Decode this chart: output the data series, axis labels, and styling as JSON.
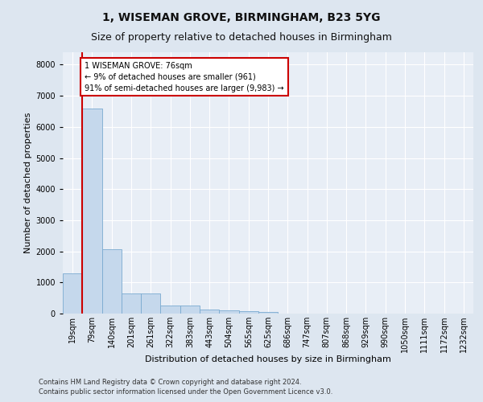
{
  "title1": "1, WISEMAN GROVE, BIRMINGHAM, B23 5YG",
  "title2": "Size of property relative to detached houses in Birmingham",
  "xlabel": "Distribution of detached houses by size in Birmingham",
  "ylabel": "Number of detached properties",
  "bar_values": [
    1300,
    6600,
    2080,
    650,
    650,
    250,
    250,
    130,
    110,
    90,
    60,
    0,
    0,
    0,
    0,
    0,
    0,
    0,
    0,
    0,
    0
  ],
  "bar_color": "#c5d8ec",
  "bar_edge_color": "#7aaad0",
  "x_labels": [
    "19sqm",
    "79sqm",
    "140sqm",
    "201sqm",
    "261sqm",
    "322sqm",
    "383sqm",
    "443sqm",
    "504sqm",
    "565sqm",
    "625sqm",
    "686sqm",
    "747sqm",
    "807sqm",
    "868sqm",
    "929sqm",
    "990sqm",
    "1050sqm",
    "1111sqm",
    "1172sqm",
    "1232sqm"
  ],
  "ylim": [
    0,
    8400
  ],
  "yticks": [
    0,
    1000,
    2000,
    3000,
    4000,
    5000,
    6000,
    7000,
    8000
  ],
  "property_bin_index": 1,
  "red_line_color": "#cc0000",
  "annotation_text": "1 WISEMAN GROVE: 76sqm\n← 9% of detached houses are smaller (961)\n91% of semi-detached houses are larger (9,983) →",
  "annotation_box_color": "#ffffff",
  "annotation_box_edge_color": "#cc0000",
  "footer_text1": "Contains HM Land Registry data © Crown copyright and database right 2024.",
  "footer_text2": "Contains public sector information licensed under the Open Government Licence v3.0.",
  "background_color": "#dde6f0",
  "plot_bg_color": "#e8eef6",
  "grid_color": "#ffffff",
  "title_fontsize": 10,
  "subtitle_fontsize": 9,
  "axis_label_fontsize": 8,
  "tick_fontsize": 7,
  "footer_fontsize": 6
}
